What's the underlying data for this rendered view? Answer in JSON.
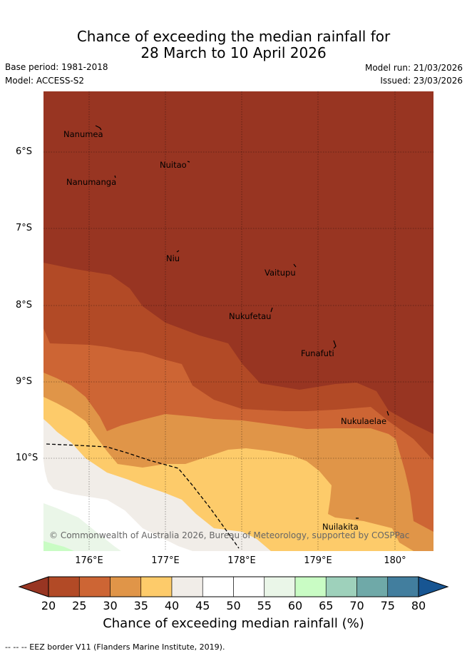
{
  "title_line1": "Chance of exceeding the median rainfall for",
  "title_line2": "28 March to 10 April 2026",
  "base_period": "Base period: 1981-2018",
  "model": "Model: ACCESS-S2",
  "model_run": "Model run: 21/03/2026",
  "issued": "Issued: 23/03/2026",
  "copyright": "© Commonwealth of Australia 2026, Bureau of Meteorology, supported by COSPPac",
  "y_ticks": [
    "6°S",
    "7°S",
    "8°S",
    "9°S",
    "10°S"
  ],
  "x_ticks": [
    "176°E",
    "177°E",
    "178°E",
    "179°E",
    "180°"
  ],
  "places": [
    "Nanumea",
    "Nuitao",
    "Nanumanga",
    "Niu",
    "Vaitupu",
    "Nukufetau",
    "Funafuti",
    "Nukulaelae",
    "Nuilakita"
  ],
  "colorbar": {
    "ticks": [
      "20",
      "25",
      "30",
      "35",
      "40",
      "45",
      "50",
      "55",
      "60",
      "65",
      "70",
      "75",
      "80"
    ],
    "colors": [
      "#b24a26",
      "#cd6534",
      "#e09548",
      "#fdcb6a",
      "#f1ede8",
      "#ffffff",
      "#ffffff",
      "#eaf6e8",
      "#c9fcc4",
      "#9ed1bb",
      "#6fa9a8",
      "#427e9e"
    ],
    "under_color": "#983522",
    "over_color": "#175592",
    "label": "Chance of exceeding median rainfall (%)"
  },
  "footer": "--  --  -- EEZ border V11 (Flanders Marine Institute, 2019)."
}
